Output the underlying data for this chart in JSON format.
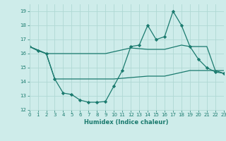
{
  "background_color": "#ceecea",
  "grid_color": "#b0d8d4",
  "line_color": "#1a7a6e",
  "line1": {
    "x": [
      0,
      1,
      2,
      3,
      4,
      5,
      6,
      7,
      8,
      9,
      10,
      11,
      12,
      13,
      14,
      15,
      16,
      17,
      18,
      19,
      20,
      21,
      22,
      23
    ],
    "y": [
      16.5,
      16.2,
      16.0,
      14.2,
      13.2,
      13.1,
      12.7,
      12.55,
      12.55,
      12.6,
      13.7,
      14.8,
      16.5,
      16.6,
      18.0,
      17.0,
      17.2,
      19.0,
      18.0,
      16.5,
      15.6,
      15.0,
      14.7,
      14.6
    ]
  },
  "line2": {
    "x": [
      0,
      2,
      3,
      9,
      10,
      14,
      16,
      19,
      20,
      23
    ],
    "y": [
      16.5,
      16.0,
      14.2,
      14.2,
      14.2,
      14.4,
      14.4,
      14.8,
      14.8,
      14.8
    ]
  },
  "line3": {
    "x": [
      0,
      2,
      9,
      12,
      14,
      16,
      18,
      19,
      21,
      22,
      23
    ],
    "y": [
      16.5,
      16.0,
      16.0,
      16.4,
      16.3,
      16.3,
      16.6,
      16.5,
      16.5,
      14.8,
      14.6
    ]
  },
  "xlim": [
    0,
    23
  ],
  "ylim": [
    12,
    19.5
  ],
  "yticks": [
    12,
    13,
    14,
    15,
    16,
    17,
    18,
    19
  ],
  "xticks": [
    0,
    1,
    2,
    3,
    4,
    5,
    6,
    7,
    8,
    9,
    10,
    11,
    12,
    13,
    14,
    15,
    16,
    17,
    18,
    19,
    20,
    21,
    22,
    23
  ],
  "xlabel": "Humidex (Indice chaleur)",
  "marker": "D",
  "markersize": 2.2,
  "linewidth": 0.9
}
